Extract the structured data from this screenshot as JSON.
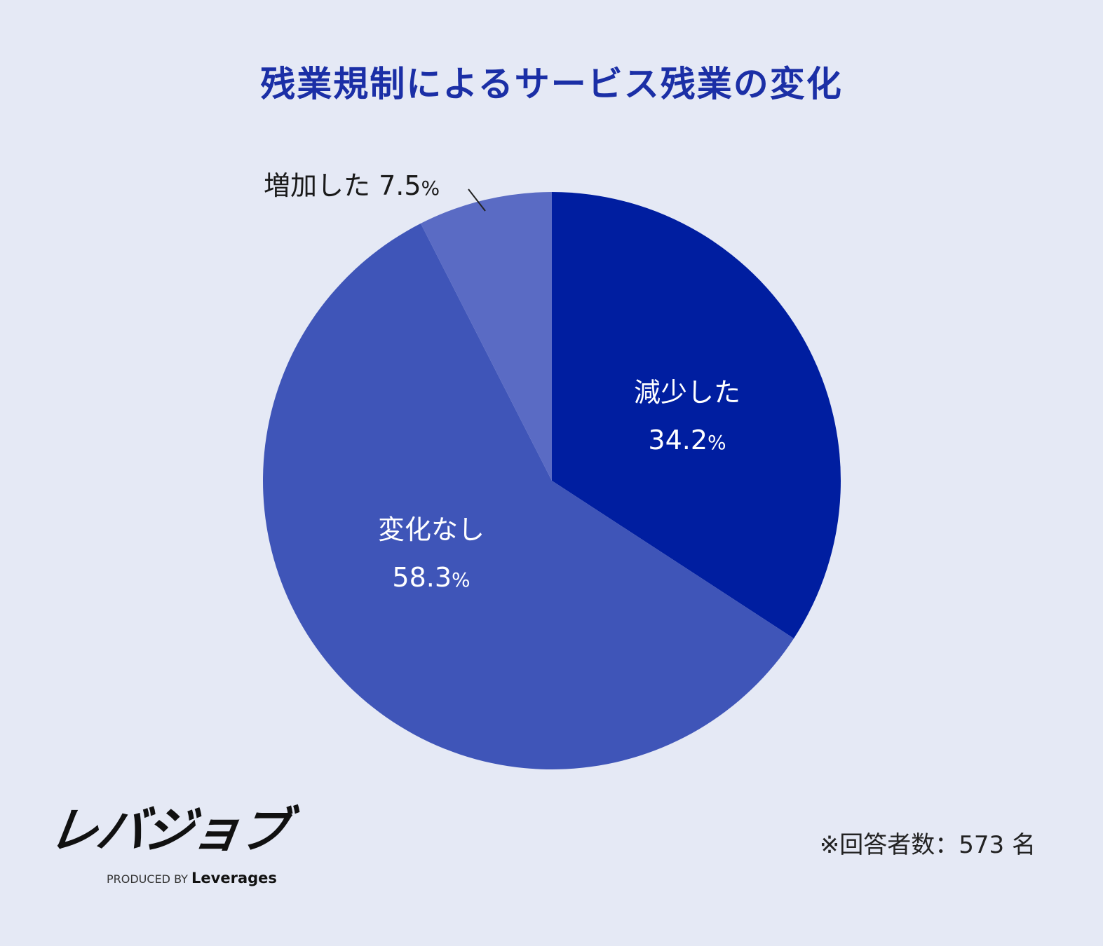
{
  "chart_data": {
    "type": "pie",
    "title": "残業規制によるサービス残業の変化",
    "unit": "%",
    "start": "top",
    "direction": "clockwise",
    "slices": [
      {
        "label": "減少した",
        "value": 34.2,
        "color": "#001ea0"
      },
      {
        "label": "変化なし",
        "value": 58.3,
        "color": "#3f55b8"
      },
      {
        "label": "増加した",
        "value": 7.5,
        "color": "#5a6bc4"
      }
    ]
  },
  "footer": {
    "logo": "レバジョブ",
    "produced_by": "PRODUCED BY",
    "brand": "Leverages",
    "note": "※回答者数：573 名"
  }
}
